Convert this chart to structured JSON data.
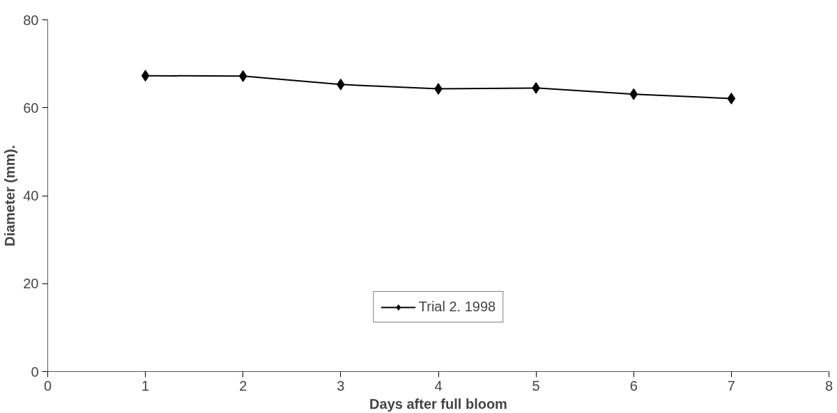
{
  "chart_data": {
    "type": "line",
    "xlabel": "Days after full bloom",
    "ylabel": "Diameter (mm).",
    "x": [
      1,
      2,
      3,
      4,
      5,
      6,
      7
    ],
    "series": [
      {
        "name": "Trial 2. 1998",
        "color": "#000000",
        "values": [
          67.3,
          67.2,
          65.3,
          64.3,
          64.5,
          63.1,
          62.1
        ]
      }
    ],
    "xlim": [
      0,
      8
    ],
    "xticks": [
      0,
      1,
      2,
      3,
      4,
      5,
      6,
      7,
      8
    ],
    "ylim": [
      0,
      80
    ],
    "yticks": [
      0,
      20,
      40,
      60,
      80
    ],
    "grid": false,
    "legend": "bottom",
    "marker": "diamond",
    "line_style": "solid"
  }
}
